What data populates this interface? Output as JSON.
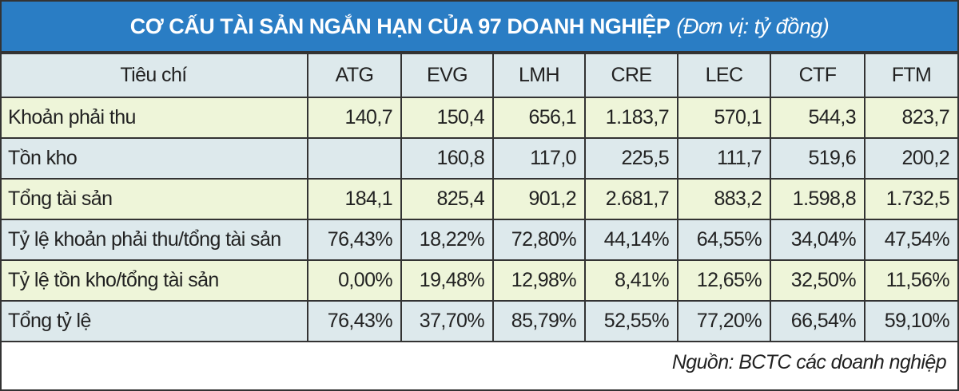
{
  "chart_data": {
    "type": "table",
    "title": "CƠ CẤU TÀI SẢN NGẮN HẠN CỦA 97 DOANH NGHIỆP",
    "unit": "(Đơn vị: tỷ đồng)",
    "header": [
      "Tiêu chí",
      "ATG",
      "EVG",
      "LMH",
      "CRE",
      "LEC",
      "CTF",
      "FTM"
    ],
    "rows": [
      [
        "Khoản phải thu",
        "140,7",
        "150,4",
        "656,1",
        "1.183,7",
        "570,1",
        "544,3",
        "823,7"
      ],
      [
        "Tồn kho",
        "",
        "160,8",
        "117,0",
        "225,5",
        "111,7",
        "519,6",
        "200,2"
      ],
      [
        "Tổng tài sản",
        "184,1",
        "825,4",
        "901,2",
        "2.681,7",
        "883,2",
        "1.598,8",
        "1.732,5"
      ],
      [
        "Tỷ lệ khoản phải thu/tổng tài sản",
        "76,43%",
        "18,22%",
        "72,80%",
        "44,14%",
        "64,55%",
        "34,04%",
        "47,54%"
      ],
      [
        "Tỷ lệ tồn kho/tổng tài sản",
        "0,00%",
        "19,48%",
        "12,98%",
        "8,41%",
        "12,65%",
        "32,50%",
        "11,56%"
      ],
      [
        "Tổng tỷ lệ",
        "76,43%",
        "37,70%",
        "85,79%",
        "52,55%",
        "77,20%",
        "66,54%",
        "59,10%"
      ]
    ],
    "source": "Nguồn: BCTC các doanh nghiệp"
  },
  "colors": {
    "title_bg": "#2a7dc4",
    "row_green": "#eef5d9",
    "row_blue": "#dde9ec"
  }
}
